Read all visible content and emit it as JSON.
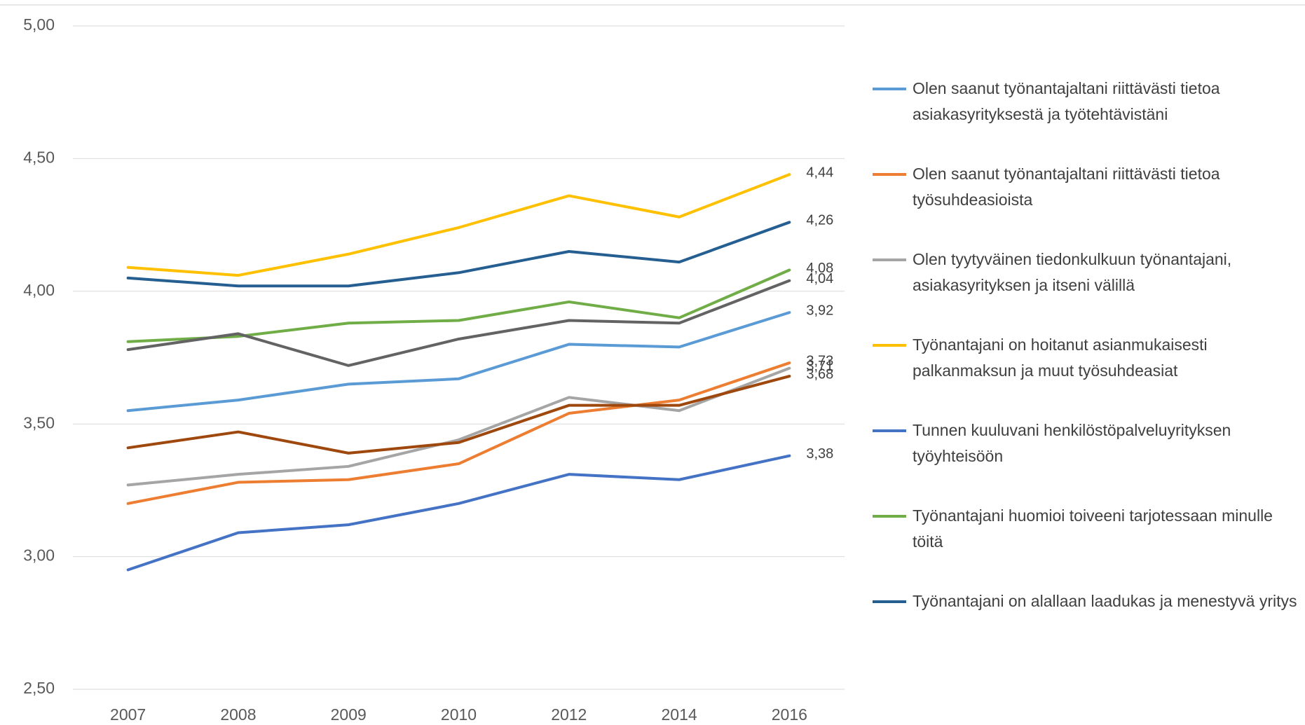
{
  "chart_data": {
    "type": "line",
    "categories": [
      "2007",
      "2008",
      "2009",
      "2010",
      "2012",
      "2014",
      "2016"
    ],
    "ylim": [
      2.5,
      5.0
    ],
    "yticks": [
      {
        "value": 2.5,
        "label": "2,50"
      },
      {
        "value": 3.0,
        "label": "3,00"
      },
      {
        "value": 3.5,
        "label": "3,50"
      },
      {
        "value": 4.0,
        "label": "4,00"
      },
      {
        "value": 4.5,
        "label": "4,50"
      },
      {
        "value": 5.0,
        "label": "5,00"
      }
    ],
    "grid": true,
    "legend": "right",
    "series": [
      {
        "name": "Olen saanut työnantajaltani riittävästi tietoa asiakasyrityksestä ja työtehtävistäni",
        "color": "#5b9bd5",
        "values": [
          3.55,
          3.59,
          3.65,
          3.67,
          3.8,
          3.79,
          3.92
        ],
        "value_labels": [
          null,
          null,
          null,
          null,
          null,
          null,
          "3,92"
        ]
      },
      {
        "name": "Olen saanut työnantajaltani riittävästi tietoa työsuhdeasioista",
        "color": "#ed7d31",
        "values": [
          3.2,
          3.28,
          3.29,
          3.35,
          3.54,
          3.59,
          3.73
        ],
        "value_labels": [
          null,
          null,
          null,
          null,
          null,
          null,
          "3,73"
        ]
      },
      {
        "name": "Olen tyytyväinen tiedonkulkuun työnantajani, asiakasyrityksen ja itseni välillä",
        "color": "#a5a5a5",
        "values": [
          3.27,
          3.31,
          3.34,
          3.44,
          3.6,
          3.55,
          3.71
        ],
        "value_labels": [
          null,
          null,
          null,
          null,
          null,
          null,
          "3,71"
        ]
      },
      {
        "name": "Työnantajani on hoitanut asianmukaisesti palkanmaksun ja muut työsuhdeasiat",
        "color": "#ffc000",
        "values": [
          4.09,
          4.06,
          4.14,
          4.24,
          4.36,
          4.28,
          4.44
        ],
        "value_labels": [
          null,
          null,
          null,
          null,
          null,
          null,
          "4,44"
        ]
      },
      {
        "name": "Tunnen kuuluvani henkilöstöpalveluyrityksen työyhteisöön",
        "color": "#4472c4",
        "values": [
          2.95,
          3.09,
          3.12,
          3.2,
          3.31,
          3.29,
          3.38
        ],
        "value_labels": [
          null,
          null,
          null,
          null,
          null,
          null,
          "3,38"
        ]
      },
      {
        "name": "Työnantajani huomioi toiveeni tarjotessaan minulle töitä",
        "color": "#70ad47",
        "values": [
          3.81,
          3.83,
          3.88,
          3.89,
          3.96,
          3.9,
          4.08
        ],
        "value_labels": [
          null,
          null,
          null,
          null,
          null,
          null,
          "4,08"
        ]
      },
      {
        "name": "Työnantajani on alallaan laadukas ja menestyvä yritys",
        "color": "#255e91",
        "values": [
          4.05,
          4.02,
          4.02,
          4.07,
          4.15,
          4.11,
          4.26
        ],
        "value_labels": [
          null,
          null,
          null,
          null,
          null,
          null,
          "4,26"
        ]
      },
      {
        "color": "#636363",
        "values": [
          3.78,
          3.84,
          3.72,
          3.82,
          3.89,
          3.88,
          4.04
        ],
        "value_labels": [
          null,
          null,
          null,
          null,
          null,
          null,
          "4,04"
        ]
      },
      {
        "color": "#9e480e",
        "values": [
          3.41,
          3.47,
          3.39,
          3.43,
          3.57,
          3.57,
          3.68
        ],
        "value_labels": [
          null,
          null,
          null,
          null,
          null,
          null,
          "3,68"
        ]
      }
    ]
  }
}
